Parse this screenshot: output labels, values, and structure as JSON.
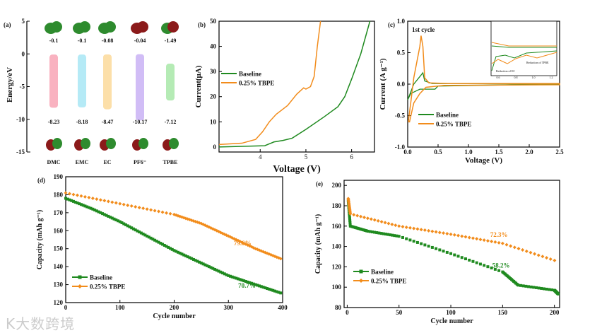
{
  "colors": {
    "baseline": "#1f8a1f",
    "tbpe": "#f28c1b",
    "axis": "#000000"
  },
  "watermark": "K大数跨境",
  "chart_data": [
    {
      "id": "a",
      "type": "bar",
      "panel_label": "(a)",
      "ylabel": "Energy/eV",
      "ylim": [
        -15,
        5
      ],
      "yticks": [
        5,
        0,
        -5,
        -10,
        -15
      ],
      "categories": [
        "DMC",
        "EMC",
        "EC",
        "PF6⁻",
        "TPBE"
      ],
      "lumo": [
        -0.1,
        -0.1,
        -0.08,
        -0.04,
        -1.49
      ],
      "homo": [
        -8.23,
        -8.18,
        -8.47,
        -10.17,
        -7.12
      ],
      "lumo_labels": [
        "-0.1",
        "-0.1",
        "-0.08",
        "-0.04",
        "-1.49"
      ],
      "homo_labels": [
        "-8.23",
        "-8.18",
        "-8.47",
        "-10.17",
        "-7.12"
      ],
      "bar_colors": [
        "#f8a5b5",
        "#a8e6f5",
        "#fbd99a",
        "#c9b2f5",
        "#a8e8a8"
      ]
    },
    {
      "id": "b",
      "type": "line",
      "panel_label": "(b)",
      "xlabel": "Voltage (V)",
      "ylabel": "Current(μA)",
      "xlim": [
        3.1,
        6.5
      ],
      "ylim": [
        -2,
        50
      ],
      "xticks": [
        4,
        5,
        6
      ],
      "yticks": [
        0,
        10,
        20,
        30,
        40,
        50
      ],
      "legend": "center-left",
      "series": [
        {
          "name": "Baseline",
          "x": [
            3.1,
            4.1,
            4.3,
            4.5,
            4.7,
            5.0,
            5.4,
            5.7,
            5.85,
            6.0,
            6.2,
            6.4
          ],
          "y": [
            0,
            0.5,
            2,
            2.6,
            3.5,
            7,
            12,
            16,
            20,
            27,
            37,
            50
          ]
        },
        {
          "name": "0.25% TBPE",
          "x": [
            3.1,
            3.6,
            3.9,
            4.05,
            4.2,
            4.35,
            4.6,
            4.8,
            4.95,
            5.0,
            5.1,
            5.18,
            5.25,
            5.32
          ],
          "y": [
            1,
            1.5,
            3,
            6,
            10,
            13,
            16.5,
            21,
            23.5,
            23,
            24,
            28,
            40,
            50
          ]
        }
      ]
    },
    {
      "id": "c",
      "type": "line",
      "panel_label": "(c)",
      "annotation": "1st cycle",
      "xlabel": "Voltage (V)",
      "ylabel": "Current (A g⁻¹)",
      "xlim": [
        0,
        2.5
      ],
      "ylim": [
        -1,
        1
      ],
      "xticks": [
        0,
        0.5,
        1.0,
        1.5,
        2.0,
        2.5
      ],
      "xtick_labels": [
        "0.0",
        "0.5",
        "1.0",
        "1.5",
        "2.0",
        "2.5"
      ],
      "yticks": [
        -1,
        -0.5,
        0,
        0.5,
        1
      ],
      "ytick_labels": [
        "-1.0",
        "-0.5",
        "0.0",
        "0.5",
        "1.0"
      ],
      "legend": "bottom-left",
      "series": [
        {
          "name": "Baseline",
          "x": [
            0,
            0.1,
            0.2,
            0.25,
            0.28,
            0.4,
            2.5,
            0.5,
            0.45,
            0.2,
            0.05,
            0
          ],
          "y": [
            -0.25,
            0,
            0.12,
            0.18,
            0.05,
            0.01,
            0,
            -0.03,
            -0.08,
            -0.08,
            -0.15,
            -0.25
          ]
        },
        {
          "name": "0.25% TBPE",
          "x": [
            0.01,
            0.05,
            0.1,
            0.15,
            0.2,
            0.22,
            0.25,
            0.28,
            0.35,
            0.7,
            1.1,
            2.5,
            2.5,
            0.6,
            0.3,
            0.2,
            0.1,
            0.03,
            0.01
          ],
          "y": [
            -0.6,
            -0.3,
            0.1,
            0.35,
            0.6,
            0.77,
            0.6,
            0.1,
            0.02,
            0.01,
            0.01,
            0.01,
            -0.01,
            -0.02,
            -0.05,
            -0.15,
            -0.3,
            -0.6,
            -0.6
          ]
        }
      ],
      "inset": {
        "xticks": [
          "0.6",
          "0.8",
          "1.0",
          "1.2"
        ],
        "annotations": [
          "Reduction of EC",
          "Reduction of TPBE"
        ]
      }
    },
    {
      "id": "d",
      "type": "scatter",
      "panel_label": "(d)",
      "xlabel": "Cycle number",
      "ylabel": "Capacity (mAh g⁻¹)",
      "xlim": [
        0,
        400
      ],
      "ylim": [
        120,
        190
      ],
      "xticks": [
        0,
        100,
        200,
        300,
        400
      ],
      "yticks": [
        120,
        130,
        140,
        150,
        160,
        170,
        180,
        190
      ],
      "legend": "bottom-left",
      "series": [
        {
          "name": "Baseline",
          "x": [
            0,
            50,
            100,
            150,
            200,
            250,
            300,
            350,
            400
          ],
          "y": [
            178,
            172,
            165,
            157,
            149,
            142,
            135,
            130,
            125
          ],
          "retention": "70.7%"
        },
        {
          "name": "0.25% TBPE",
          "x": [
            0,
            100,
            200,
            250,
            300,
            350,
            400
          ],
          "y": [
            181,
            175,
            169,
            164,
            157,
            150,
            144
          ],
          "retention": "79.6%"
        }
      ]
    },
    {
      "id": "e",
      "type": "scatter",
      "panel_label": "(e)",
      "xlabel": "Cycle number",
      "ylabel": "Capacity (mAh g⁻¹)",
      "xlim": [
        -3,
        205
      ],
      "ylim": [
        80,
        205
      ],
      "xticks": [
        0,
        50,
        100,
        150,
        200
      ],
      "yticks": [
        80,
        100,
        120,
        140,
        160,
        180,
        200
      ],
      "legend": "bottom-left",
      "series": [
        {
          "name": "Baseline",
          "x": [
            1,
            3,
            20,
            50,
            100,
            150,
            165,
            200,
            204
          ],
          "y": [
            185,
            160,
            155,
            150,
            133,
            115,
            102,
            97,
            93
          ],
          "retention": "58.2%"
        },
        {
          "name": "0.25% TBPE",
          "x": [
            1,
            3,
            50,
            100,
            150,
            204
          ],
          "y": [
            187,
            172,
            160,
            152,
            143,
            125
          ],
          "retention": "72.3%"
        }
      ]
    }
  ]
}
